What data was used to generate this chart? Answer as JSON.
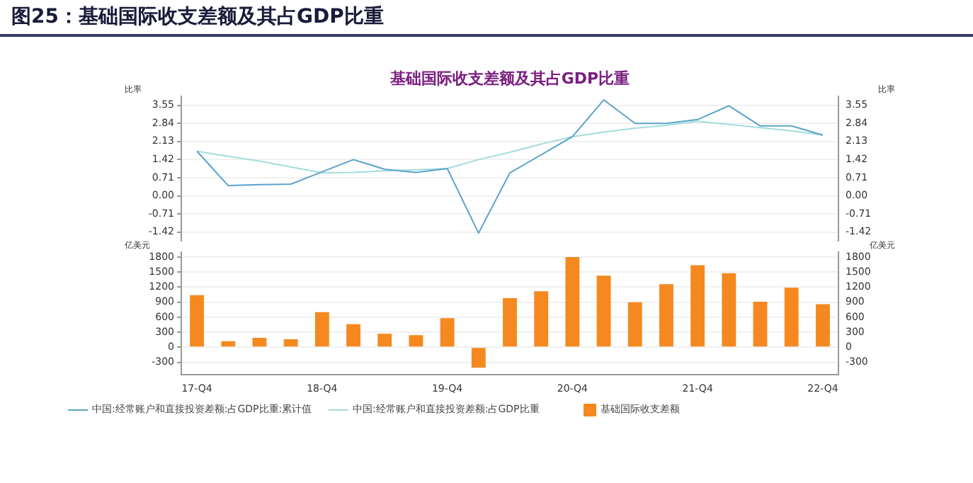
{
  "chart_data": [
    {
      "type": "line",
      "title": "图25：基础国际收支差额及其占GDP比重",
      "subtitle": "基础国际收支差额及其占GDP比重",
      "ylabel": "比率",
      "y2label": "比率",
      "categories": [
        null,
        null,
        null,
        null,
        null,
        null,
        null,
        null,
        null,
        null,
        null,
        null,
        null,
        null,
        null,
        null,
        null,
        null,
        null,
        null,
        null
      ],
      "series": [
        {
          "name": "中国:经常账户和直接投资差额:占GDP比重:累计值",
          "color": "#5ba3c9",
          "values": [
            1.75,
            0.4,
            0.44,
            0.46,
            0.94,
            1.42,
            1.04,
            0.92,
            1.07,
            -1.46,
            0.9,
            1.61,
            2.32,
            3.76,
            2.84,
            2.84,
            2.99,
            3.53,
            2.74,
            2.74,
            2.38
          ]
        },
        {
          "name": "中国:经常账户和直接投资差额:占GDP比重",
          "color": "#a3dcdc",
          "values": [
            1.75,
            1.55,
            1.36,
            1.13,
            0.9,
            0.92,
            0.98,
            1.02,
            1.07,
            1.42,
            1.71,
            2.03,
            2.32,
            2.5,
            2.65,
            2.76,
            2.92,
            2.8,
            2.67,
            2.55,
            2.38
          ]
        }
      ],
      "ylim": [
        -1.75,
        3.9
      ],
      "yticks": [
        -1.42,
        -0.71,
        {
          "value": 0,
          "label": "0.00"
        },
        0.71,
        1.42,
        2.13,
        2.84,
        3.55
      ],
      "y2lim": [
        -1.75,
        3.9
      ],
      "y2ticks": [
        -1.42,
        -0.71,
        {
          "value": 0,
          "label": "0.00"
        },
        0.71,
        1.42,
        2.13,
        2.84,
        3.55
      ],
      "grid": "y",
      "legend": "bottom",
      "tick_labels": "y",
      "marker": "none",
      "line_style": "solid"
    },
    {
      "type": "bar",
      "ylabel": "亿美元",
      "y2label": "亿美元",
      "categories": [
        "17-Q4",
        null,
        null,
        null,
        "18-Q4",
        null,
        null,
        null,
        "19-Q4",
        null,
        null,
        null,
        "20-Q4",
        null,
        null,
        null,
        "21-Q4",
        null,
        null,
        null,
        "22-Q4"
      ],
      "series": [
        {
          "name": "基础国际收支差额",
          "color": "#f5891f",
          "values": [
            1040,
            120,
            190,
            160,
            700,
            460,
            270,
            240,
            580,
            -410,
            980,
            1120,
            1800,
            1430,
            900,
            1260,
            1640,
            1480,
            910,
            1190,
            860
          ]
        }
      ],
      "ylim": [
        -550,
        1900
      ],
      "yticks": [
        -300,
        0,
        300,
        600,
        900,
        1200,
        1500,
        1800
      ],
      "y2lim": [
        -550,
        1900
      ],
      "y2ticks": [
        -300,
        0,
        300,
        600,
        900,
        1200,
        1500,
        1800
      ],
      "grid": "y",
      "legend": "bottom"
    }
  ]
}
